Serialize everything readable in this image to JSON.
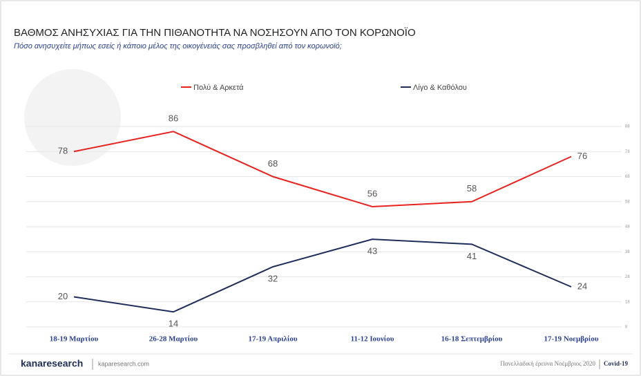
{
  "chart_data": {
    "type": "line",
    "title": "ΒΑΘΜΟΣ ΑΝΗΣΥΧΙΑΣ ΓΙΑ ΤΗΝ ΠΙΘΑΝΟΤΗΤΑ ΝΑ ΝΟΣΗΣΟΥΝ ΑΠΟ ΤΟΝ ΚΟΡΩΝΟΪΟ",
    "subtitle": "Πόσο ανησυχείτε μήπως εσείς ή κάποιο μέλος της οικογένειάς σας προσβληθεί από τον κορωνοϊό;",
    "categories": [
      "18-19 Μαρτίου",
      "26-28 Μαρτίου",
      "17-19 Απριλίου",
      "11-12 Ιουνίου",
      "16-18 Σεπτεμβρίου",
      "17-19 Νοεμβρίου"
    ],
    "series": [
      {
        "name": "Πολύ & Αρκετά",
        "color": "#e8221f",
        "values": [
          78,
          86,
          68,
          56,
          58,
          76
        ]
      },
      {
        "name": "Λίγο & Καθόλου",
        "color": "#1f2d5c",
        "values": [
          20,
          14,
          32,
          43,
          41,
          24
        ]
      }
    ],
    "ylim": [
      8,
      88
    ],
    "yticks": [
      8,
      18,
      28,
      38,
      48,
      58,
      68,
      78,
      88
    ],
    "grid": true,
    "legend": "top",
    "footer": {
      "logo": "kanaresearch",
      "site": "kaparesearch.com",
      "survey": "Πανελλαδική έρευνα Νοέμβριος 2020",
      "tag": "Covid-19"
    }
  }
}
